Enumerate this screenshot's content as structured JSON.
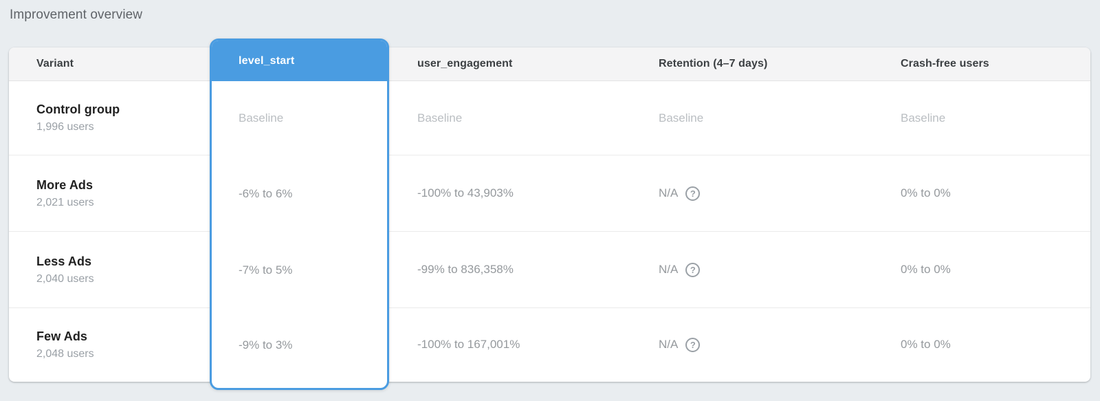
{
  "page": {
    "title": "Improvement overview"
  },
  "colors": {
    "selected_column_blue": "#4a9ce1",
    "page_background": "#e9edf0",
    "header_background": "#f4f4f5",
    "baseline_text": "#babec2",
    "value_text": "#95999d"
  },
  "icons": {
    "retention_help": "help-icon (circled question mark)"
  },
  "table": {
    "columns": [
      {
        "label": "Variant",
        "selected": false
      },
      {
        "label": "level_start",
        "selected": true
      },
      {
        "label": "user_engagement",
        "selected": false
      },
      {
        "label": "Retention (4–7 days)",
        "selected": false
      },
      {
        "label": "Crash-free users",
        "selected": false
      }
    ],
    "rows": [
      {
        "variant": "Control group",
        "users": "1,996 users",
        "level_start": "Baseline",
        "user_engagement": "Baseline",
        "retention": "Baseline",
        "crash_free": "Baseline"
      },
      {
        "variant": "More Ads",
        "users": "2,021 users",
        "level_start": "-6% to 6%",
        "user_engagement": "-100% to 43,903%",
        "retention": "N/A",
        "crash_free": "0% to 0%"
      },
      {
        "variant": "Less Ads",
        "users": "2,040 users",
        "level_start": "-7% to 5%",
        "user_engagement": "-99% to 836,358%",
        "retention": "N/A",
        "crash_free": "0% to 0%"
      },
      {
        "variant": "Few Ads",
        "users": "2,048 users",
        "level_start": "-9% to 3%",
        "user_engagement": "-100% to 167,001%",
        "retention": "N/A",
        "crash_free": "0% to 0%"
      }
    ]
  }
}
